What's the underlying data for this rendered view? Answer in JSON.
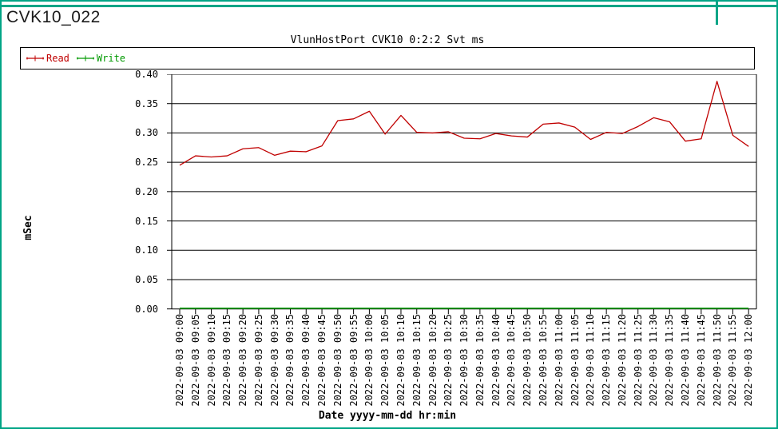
{
  "window": {
    "title": "CVK10_022"
  },
  "colors": {
    "frame_teal": "#00A586",
    "read_red": "#C00000",
    "write_green": "#009900",
    "grid_black": "#000000"
  },
  "chart_data": {
    "type": "line",
    "title": "VlunHostPort CVK10 0:2:2 Svt ms",
    "xlabel": "Date yyyy-mm-dd hr:min",
    "ylabel": "mSec",
    "ylim": [
      0.0,
      0.4
    ],
    "ytick_labels": [
      "0.40",
      "0.35",
      "0.30",
      "0.25",
      "0.20",
      "0.15",
      "0.10",
      "0.05",
      "0.00"
    ],
    "grid": "horizontal",
    "legend_position": "top-left-strip",
    "categories": [
      "2022-09-03 09:00",
      "2022-09-03 09:05",
      "2022-09-03 09:10",
      "2022-09-03 09:15",
      "2022-09-03 09:20",
      "2022-09-03 09:25",
      "2022-09-03 09:30",
      "2022-09-03 09:35",
      "2022-09-03 09:40",
      "2022-09-03 09:45",
      "2022-09-03 09:50",
      "2022-09-03 09:55",
      "2022-09-03 10:00",
      "2022-09-03 10:05",
      "2022-09-03 10:10",
      "2022-09-03 10:15",
      "2022-09-03 10:20",
      "2022-09-03 10:25",
      "2022-09-03 10:30",
      "2022-09-03 10:35",
      "2022-09-03 10:40",
      "2022-09-03 10:45",
      "2022-09-03 10:50",
      "2022-09-03 10:55",
      "2022-09-03 11:00",
      "2022-09-03 11:05",
      "2022-09-03 11:10",
      "2022-09-03 11:15",
      "2022-09-03 11:20",
      "2022-09-03 11:25",
      "2022-09-03 11:30",
      "2022-09-03 11:35",
      "2022-09-03 11:40",
      "2022-09-03 11:45",
      "2022-09-03 11:50",
      "2022-09-03 11:55",
      "2022-09-03 12:00"
    ],
    "series": [
      {
        "name": "Read",
        "color": "#C00000",
        "values": [
          0.245,
          0.261,
          0.259,
          0.261,
          0.273,
          0.275,
          0.262,
          0.269,
          0.268,
          0.278,
          0.321,
          0.324,
          0.337,
          0.298,
          0.33,
          0.301,
          0.3,
          0.302,
          0.291,
          0.29,
          0.299,
          0.295,
          0.293,
          0.315,
          0.317,
          0.31,
          0.289,
          0.301,
          0.299,
          0.311,
          0.326,
          0.319,
          0.286,
          0.29,
          0.388,
          0.296,
          0.277
        ]
      },
      {
        "name": "Write",
        "color": "#009900",
        "values": [
          0,
          0,
          0,
          0,
          0,
          0,
          0,
          0,
          0,
          0,
          0,
          0,
          0,
          0,
          0,
          0,
          0,
          0,
          0,
          0,
          0,
          0,
          0,
          0,
          0,
          0,
          0,
          0,
          0,
          0,
          0,
          0,
          0,
          0,
          0,
          0,
          0
        ]
      }
    ]
  }
}
